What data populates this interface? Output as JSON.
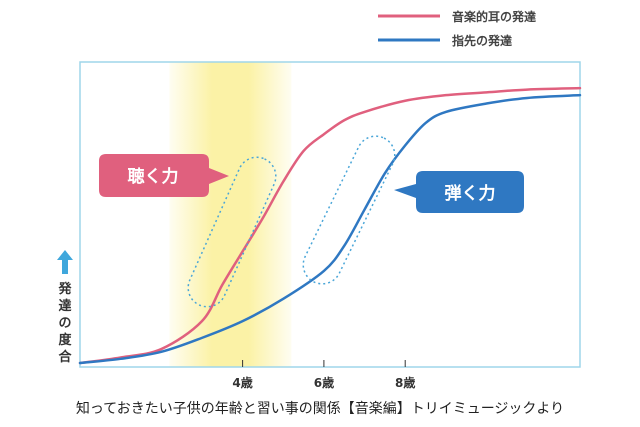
{
  "chart_data": {
    "type": "line",
    "x_ticks": [
      {
        "x": 4,
        "label": "4歳"
      },
      {
        "x": 6,
        "label": "6歳"
      },
      {
        "x": 8,
        "label": "8歳"
      }
    ],
    "xlim": [
      0,
      12.3
    ],
    "ylim": [
      0,
      100
    ],
    "ylabel": "発達の度合",
    "ylabel_arrow": "up",
    "grid": false,
    "legend_position": "top-right",
    "highlight_band": {
      "from": 2.2,
      "to": 5.2,
      "color": "#fbf2a6"
    },
    "series": [
      {
        "name": "音楽的耳の発達",
        "color": "#e0607e",
        "callout": "聴く力",
        "points": [
          [
            0,
            0
          ],
          [
            1,
            2
          ],
          [
            2,
            5
          ],
          [
            3,
            15
          ],
          [
            3.5,
            28
          ],
          [
            4,
            40
          ],
          [
            4.5,
            52
          ],
          [
            5,
            65
          ],
          [
            5.5,
            76
          ],
          [
            6,
            82
          ],
          [
            6.5,
            87
          ],
          [
            7,
            90
          ],
          [
            8,
            94
          ],
          [
            9,
            96
          ],
          [
            10,
            97
          ],
          [
            11,
            98
          ],
          [
            12.3,
            98.5
          ]
        ]
      },
      {
        "name": "指先の発達",
        "color": "#2f78c2",
        "callout": "弾く力",
        "points": [
          [
            0,
            0
          ],
          [
            1,
            1.5
          ],
          [
            2,
            4
          ],
          [
            3,
            9
          ],
          [
            4,
            15
          ],
          [
            5,
            23
          ],
          [
            6,
            33
          ],
          [
            6.5,
            42
          ],
          [
            7,
            55
          ],
          [
            7.5,
            68
          ],
          [
            8,
            78
          ],
          [
            8.5,
            86
          ],
          [
            9,
            90
          ],
          [
            10,
            93
          ],
          [
            11,
            95
          ],
          [
            12.3,
            96
          ]
        ]
      }
    ],
    "callouts": [
      {
        "label": "聴く力",
        "color": "#e0607e"
      },
      {
        "label": "弾く力",
        "color": "#2f78c2"
      }
    ]
  },
  "caption": "知っておきたい子供の年齢と習い事の関係【音楽編】トリイミュージックより"
}
